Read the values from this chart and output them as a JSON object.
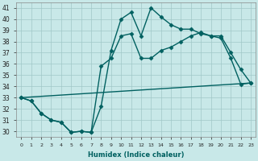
{
  "xlabel": "Humidex (Indice chaleur)",
  "xlim": [
    -0.5,
    23.5
  ],
  "ylim": [
    29.5,
    41.5
  ],
  "xticks": [
    0,
    1,
    2,
    3,
    4,
    5,
    6,
    7,
    8,
    9,
    10,
    11,
    12,
    13,
    14,
    15,
    16,
    17,
    18,
    19,
    20,
    21,
    22,
    23
  ],
  "yticks": [
    30,
    31,
    32,
    33,
    34,
    35,
    36,
    37,
    38,
    39,
    40,
    41
  ],
  "bg_color": "#c8e8e8",
  "grid_color": "#a0c8c8",
  "line_color": "#006060",
  "line1_x": [
    0,
    1,
    2,
    3,
    4,
    5,
    6,
    7,
    8,
    9,
    10,
    11,
    12,
    13,
    14,
    15,
    16,
    17,
    18,
    19,
    20,
    21,
    22,
    23
  ],
  "line1_y": [
    33.0,
    32.7,
    31.6,
    31.0,
    30.8,
    29.9,
    30.0,
    29.9,
    35.8,
    36.5,
    38.5,
    38.7,
    36.5,
    36.5,
    37.2,
    37.5,
    38.0,
    38.5,
    38.8,
    38.5,
    38.5,
    37.0,
    35.5,
    34.3
  ],
  "line2_x": [
    0,
    1,
    2,
    3,
    4,
    5,
    6,
    7,
    8,
    9,
    10,
    11,
    12,
    13,
    14,
    15,
    16,
    17,
    18,
    19,
    20,
    21,
    22,
    23
  ],
  "line2_y": [
    33.0,
    32.7,
    31.6,
    31.0,
    30.8,
    29.9,
    30.0,
    29.9,
    32.2,
    37.2,
    40.0,
    40.6,
    38.5,
    41.0,
    40.2,
    39.5,
    39.1,
    39.1,
    38.7,
    38.5,
    38.3,
    36.5,
    34.2,
    34.3
  ],
  "line3_x": [
    0,
    23
  ],
  "line3_y": [
    33.0,
    34.3
  ],
  "marker": "D",
  "markersize": 2.5,
  "linewidth": 1.0
}
